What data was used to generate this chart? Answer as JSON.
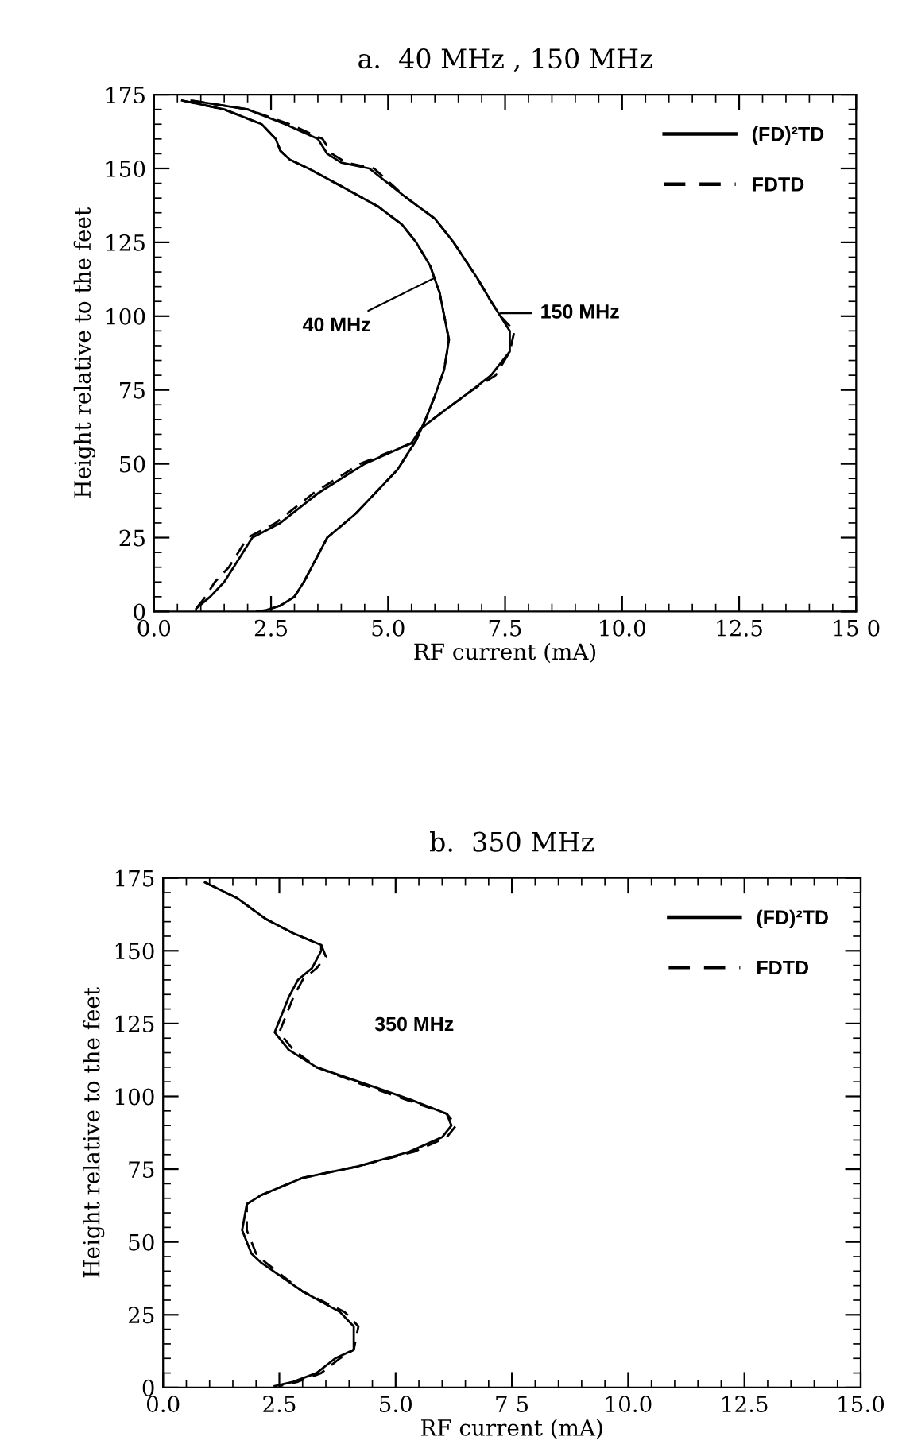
{
  "chart_data": [
    {
      "type": "line",
      "title": "a.  40 MHz , 150 MHz",
      "xlabel": "RF current (mA)",
      "ylabel": "Height relative to the feet",
      "xlim": [
        0,
        15
      ],
      "ylim": [
        0,
        175
      ],
      "xticks": [
        {
          "value": 0,
          "label": "0.0"
        },
        {
          "value": 2.5,
          "label": "2.5"
        },
        {
          "value": 5,
          "label": "5.0"
        },
        {
          "value": 7.5,
          "label": "7.5"
        },
        {
          "value": 10,
          "label": "10.0"
        },
        {
          "value": 12.5,
          "label": "12.5"
        },
        {
          "value": 15,
          "label": "15 0"
        }
      ],
      "yticks": [
        0,
        25,
        50,
        75,
        100,
        125,
        150,
        175
      ],
      "legend": "top right",
      "grid": false,
      "marker": "none",
      "annotations": [
        {
          "text": "40 MHz",
          "x": 6.0,
          "y": 113
        },
        {
          "text": "150 MHz",
          "x": 7.4,
          "y": 101
        }
      ],
      "series": [
        {
          "name": "(FD)²TD",
          "color": "#000000",
          "line_style": "solid",
          "x": [
            0.6,
            1.5,
            2.3,
            2.6,
            2.7,
            2.9,
            3.3,
            4.0,
            4.8,
            5.3,
            5.6,
            5.9,
            6.1,
            6.2,
            6.3,
            6.2,
            6.0,
            5.8,
            5.6,
            5.4,
            5.2,
            4.9,
            4.3,
            3.7,
            3.2,
            3.0,
            2.7,
            2.4,
            2.2
          ],
          "values": [
            173,
            170,
            165,
            160,
            156,
            153,
            150,
            144,
            137,
            131,
            125,
            117,
            108,
            100,
            92,
            82,
            73,
            65,
            58,
            53,
            48,
            43,
            33,
            25,
            10,
            5,
            2,
            0.5,
            0
          ]
        },
        {
          "name": "FDTD",
          "color": "#000000",
          "line_style": "dashed",
          "x": [
            0.6,
            1.5,
            2.3,
            2.6,
            2.7,
            2.9,
            3.3,
            4.0,
            4.8,
            5.3,
            5.6,
            5.9,
            6.1,
            6.2,
            6.3,
            6.2,
            6.0,
            5.8,
            5.6,
            5.4,
            5.2,
            4.9,
            4.3,
            3.7,
            3.2,
            3.0,
            2.7,
            2.4,
            2.2
          ],
          "values": [
            173,
            170,
            165,
            160,
            156,
            153,
            150,
            144,
            137,
            131,
            125,
            117,
            108,
            100,
            92,
            82,
            73,
            65,
            58,
            53,
            48,
            43,
            33,
            25,
            10,
            5,
            2,
            0.5,
            0
          ]
        },
        {
          "color": "#000000",
          "line_style": "solid",
          "x": [
            0.8,
            2.0,
            2.8,
            3.5,
            3.7,
            4.0,
            4.6,
            5.4,
            6.0,
            6.4,
            6.9,
            7.2,
            7.4,
            7.6,
            7.6,
            7.2,
            6.8,
            6.2,
            5.7,
            5.5,
            4.5,
            3.5,
            2.7,
            2.1,
            1.7,
            1.5,
            1.2,
            0.9,
            0.9
          ],
          "values": [
            173,
            170,
            165,
            160,
            155,
            152,
            150,
            140,
            133,
            125,
            113,
            105,
            100,
            95,
            88,
            80,
            75,
            68,
            62,
            57,
            50,
            40,
            30,
            25,
            15,
            10,
            5,
            1,
            0
          ]
        },
        {
          "color": "#000000",
          "line_style": "dashed",
          "x": [
            0.8,
            2.0,
            2.9,
            3.6,
            3.8,
            4.1,
            4.7,
            5.4,
            6.0,
            6.4,
            6.9,
            7.2,
            7.4,
            7.7,
            7.6,
            7.3,
            6.8,
            6.2,
            5.7,
            5.5,
            4.4,
            3.4,
            2.6,
            2.0,
            1.6,
            1.3,
            1.1,
            0.9,
            0.8
          ],
          "values": [
            173,
            170,
            165,
            160,
            155,
            152,
            150,
            140,
            133,
            125,
            113,
            105,
            100,
            95,
            88,
            80,
            75,
            68,
            62,
            57,
            50,
            40,
            30,
            25,
            15,
            10,
            5,
            1,
            0
          ]
        }
      ]
    },
    {
      "type": "line",
      "title": "b.  350 MHz",
      "xlabel": "RF current (mA)",
      "ylabel": "Height relative to the feet",
      "xlim": [
        0,
        15
      ],
      "ylim": [
        0,
        175
      ],
      "xticks": [
        {
          "value": 0,
          "label": "0.0"
        },
        {
          "value": 2.5,
          "label": "2.5"
        },
        {
          "value": 5,
          "label": "5.0"
        },
        {
          "value": 7.5,
          "label": "7 5"
        },
        {
          "value": 10,
          "label": "10.0"
        },
        {
          "value": 12.5,
          "label": "12.5"
        },
        {
          "value": 15,
          "label": "15.0"
        }
      ],
      "yticks": [
        0,
        25,
        50,
        75,
        100,
        125,
        150,
        175
      ],
      "legend": "top right",
      "grid": false,
      "marker": "none",
      "annotations": [
        "350 MHz"
      ],
      "series": [
        {
          "name": "(FD)²TD",
          "color": "#000000",
          "line_style": "solid",
          "x": [
            0.9,
            1.6,
            2.2,
            2.8,
            3.4,
            3.4,
            3.2,
            2.9,
            2.7,
            2.4,
            2.7,
            3.3,
            4.4,
            5.3,
            6.1,
            6.2,
            6.0,
            5.3,
            4.2,
            3.0,
            2.1,
            1.8,
            1.7,
            1.9,
            2.1,
            3.0,
            3.8,
            4.1,
            4.1,
            3.7,
            3.3,
            2.8,
            2.4
          ],
          "values": [
            173.5,
            168,
            161,
            156,
            152,
            150,
            144,
            140,
            134,
            122,
            116,
            110,
            104,
            99,
            94,
            90,
            86,
            81,
            76,
            72,
            66,
            63,
            54,
            46,
            43,
            33,
            26,
            21,
            13,
            10,
            5,
            2,
            0.5
          ]
        },
        {
          "name": "FDTD",
          "color": "#000000",
          "line_style": "dashed",
          "x": [
            0.9,
            1.6,
            2.2,
            2.8,
            3.4,
            3.5,
            3.3,
            3.0,
            2.8,
            2.5,
            2.8,
            3.3,
            4.3,
            5.2,
            6.1,
            6.3,
            6.1,
            5.4,
            4.2,
            3.0,
            2.1,
            1.8,
            1.8,
            2.0,
            2.2,
            3.0,
            3.9,
            4.2,
            4.1,
            3.8,
            3.4,
            2.9,
            2.5
          ],
          "values": [
            173.5,
            168,
            161,
            156,
            152,
            148,
            144,
            140,
            134,
            122,
            116,
            110,
            104,
            99,
            94,
            90,
            86,
            81,
            76,
            72,
            66,
            63,
            54,
            46,
            43,
            33,
            26,
            21,
            13,
            10,
            5,
            2,
            0.5
          ]
        }
      ]
    }
  ]
}
